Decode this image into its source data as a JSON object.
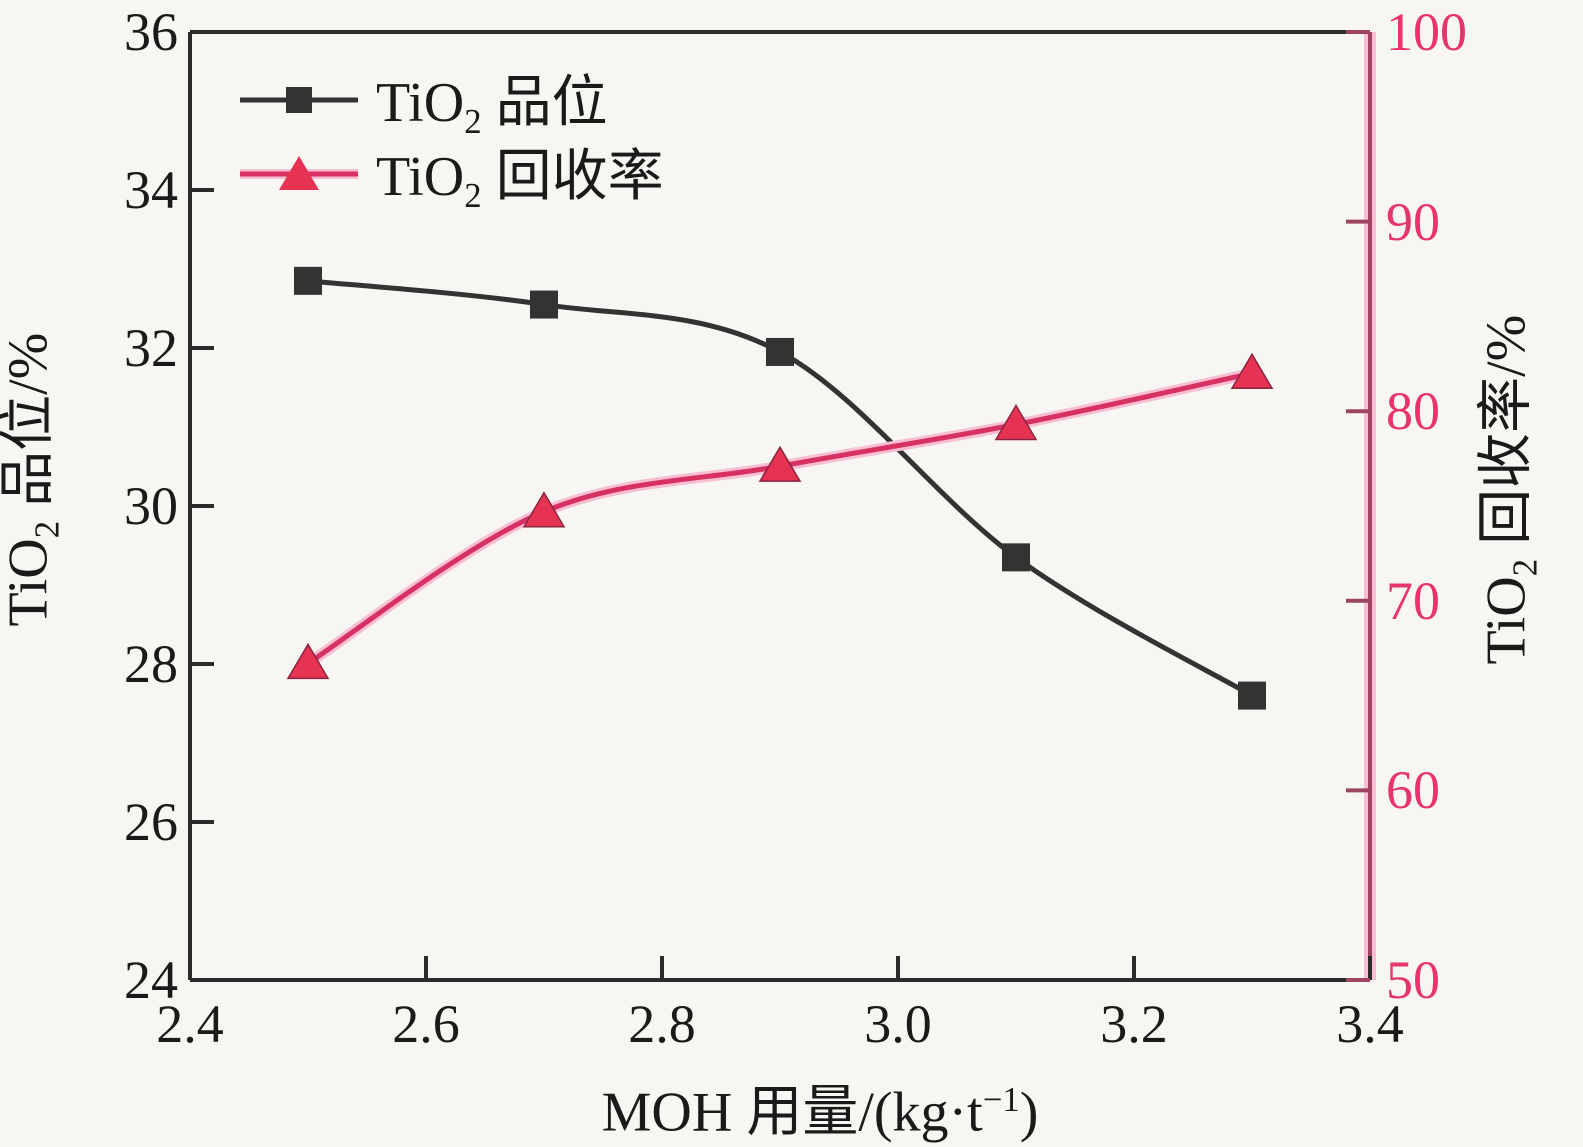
{
  "chart_data": {
    "type": "line",
    "title": "",
    "x": [
      2.5,
      2.7,
      2.9,
      3.1,
      3.3
    ],
    "series": [
      {
        "name": "TiO2 品位",
        "axis": "left",
        "marker": "square",
        "color": "#333333",
        "values": [
          32.85,
          32.55,
          31.95,
          29.35,
          27.6
        ]
      },
      {
        "name": "TiO2 回收率",
        "axis": "right",
        "marker": "triangle",
        "color": "#d73062",
        "values": [
          66.7,
          74.7,
          77.1,
          79.3,
          82.0
        ]
      }
    ],
    "xlabel": {
      "pre": "MOH 用量/(kg·t",
      "sup": "−1",
      "post": ")"
    },
    "ylabel_left": {
      "pre": "TiO",
      "sub": "2",
      "post": " 品位/%"
    },
    "ylabel_right": {
      "pre": "TiO",
      "sub": "2",
      "post": " 回收率/%"
    },
    "x_ticks": [
      "2.4",
      "2.6",
      "2.8",
      "3.0",
      "3.2",
      "3.4"
    ],
    "y_left_ticks": [
      "24",
      "26",
      "28",
      "30",
      "32",
      "34",
      "36"
    ],
    "y_right_ticks": [
      "50",
      "60",
      "70",
      "80",
      "90",
      "100"
    ],
    "x_range": [
      2.4,
      3.4
    ],
    "y_left_range": [
      24,
      36
    ],
    "y_right_range": [
      50,
      100
    ],
    "grid": false,
    "legend_position": "top-left-inside",
    "legend": [
      {
        "marker": "square",
        "label_pre": "TiO",
        "label_sub": "2",
        "label_post": " 品位"
      },
      {
        "marker": "triangle",
        "label_pre": "TiO",
        "label_sub": "2",
        "label_post": " 回收率"
      }
    ]
  },
  "colors": {
    "background": "#f7f6f2",
    "axis_black": "#2b2b2b",
    "series_grade": "#333333",
    "series_recovery": "#d73062",
    "recovery_glow": "#f9bed4",
    "right_axis_spine": "#9c4460",
    "right_axis_label": "#e73469",
    "triangle_fill": "#e63253",
    "text": "#1a1a1a"
  }
}
